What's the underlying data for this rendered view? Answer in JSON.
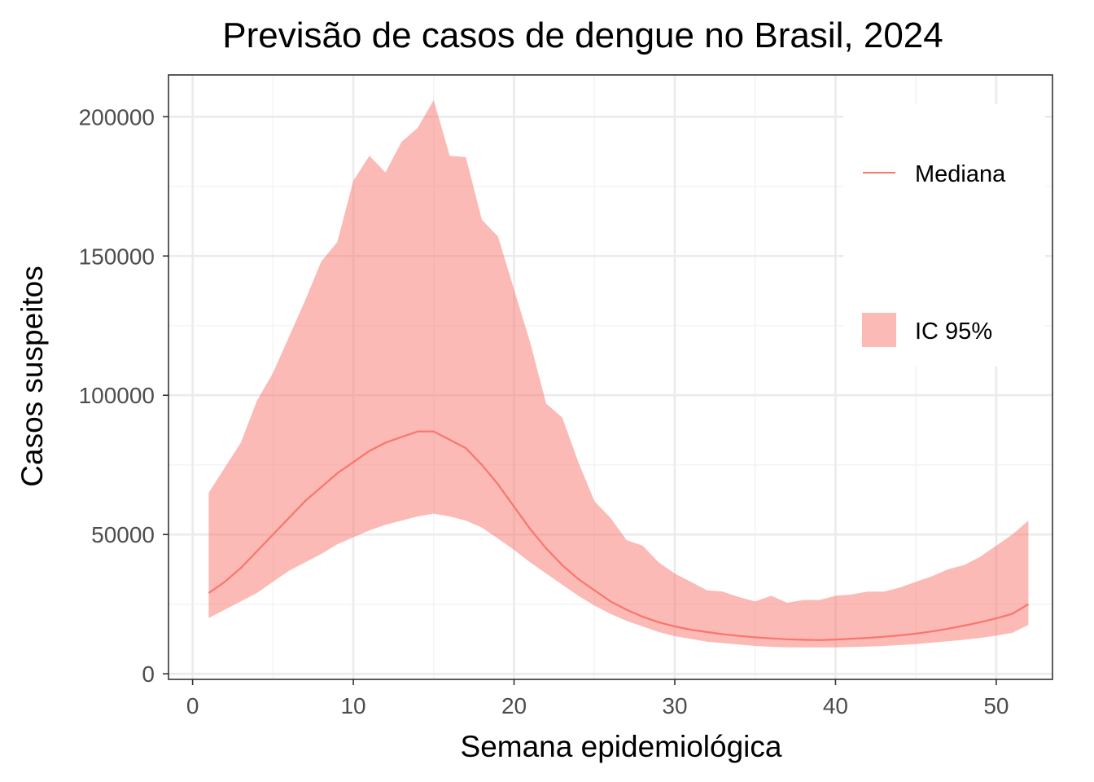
{
  "chart_data": {
    "type": "line",
    "title": "Previsão de casos de dengue no Brasil, 2024",
    "xlabel": "Semana epidemiológica",
    "ylabel": "Casos suspeitos",
    "xlim": [
      -1.5,
      53.5
    ],
    "ylim": [
      -2000,
      215000
    ],
    "x_ticks": [
      0,
      10,
      20,
      30,
      40,
      50
    ],
    "x_tick_labels": [
      "0",
      "10",
      "20",
      "30",
      "40",
      "50"
    ],
    "y_ticks": [
      0,
      50000,
      100000,
      150000,
      200000
    ],
    "y_tick_labels": [
      "0",
      "50000",
      "100000",
      "150000",
      "200000"
    ],
    "grid": true,
    "legend_position": "right",
    "colors": {
      "median": "#f8766d",
      "band": "#f8766d",
      "band_opacity": 0.5
    },
    "x": [
      1,
      2,
      3,
      4,
      5,
      6,
      7,
      8,
      9,
      10,
      11,
      12,
      13,
      14,
      15,
      16,
      17,
      18,
      19,
      20,
      21,
      22,
      23,
      24,
      25,
      26,
      27,
      28,
      29,
      30,
      31,
      32,
      33,
      34,
      35,
      36,
      37,
      38,
      39,
      40,
      41,
      42,
      43,
      44,
      45,
      46,
      47,
      48,
      49,
      50,
      51,
      52
    ],
    "series": [
      {
        "name": "Mediana",
        "kind": "line",
        "values": [
          29000,
          33000,
          38000,
          44000,
          50000,
          56000,
          62000,
          67000,
          72000,
          76000,
          80000,
          83000,
          85000,
          87000,
          87000,
          84000,
          81000,
          75000,
          68000,
          60000,
          52000,
          45000,
          39000,
          34000,
          30000,
          26000,
          23000,
          20500,
          18500,
          17000,
          15800,
          15000,
          14200,
          13600,
          13100,
          12700,
          12400,
          12200,
          12100,
          12300,
          12600,
          12900,
          13300,
          13800,
          14400,
          15200,
          16200,
          17300,
          18500,
          19900,
          21500,
          25000
        ]
      },
      {
        "name": "IC 95%",
        "kind": "ribbon",
        "lower": [
          20000,
          23000,
          26000,
          29000,
          33000,
          37000,
          40000,
          43000,
          46500,
          49000,
          51500,
          53500,
          55000,
          56500,
          57500,
          56500,
          55000,
          52500,
          48500,
          44500,
          40000,
          36000,
          32000,
          28000,
          24500,
          21500,
          19000,
          17000,
          15000,
          13500,
          12500,
          11500,
          11000,
          10500,
          10000,
          9700,
          9500,
          9500,
          9500,
          9500,
          9600,
          9800,
          10000,
          10300,
          10700,
          11200,
          11700,
          12200,
          12900,
          13700,
          14700,
          17500
        ],
        "upper": [
          65000,
          74000,
          83000,
          98000,
          108000,
          121000,
          134000,
          148000,
          155000,
          177000,
          186000,
          180000,
          191000,
          196000,
          206000,
          186000,
          185500,
          163000,
          157000,
          138000,
          119000,
          97000,
          92000,
          76000,
          62000,
          56000,
          48000,
          46000,
          40000,
          36000,
          33000,
          30000,
          29500,
          27500,
          26000,
          28000,
          25500,
          26500,
          26500,
          28000,
          28500,
          29500,
          29500,
          31000,
          33000,
          35000,
          37500,
          39000,
          42000,
          46000,
          50000,
          55000
        ]
      }
    ]
  }
}
